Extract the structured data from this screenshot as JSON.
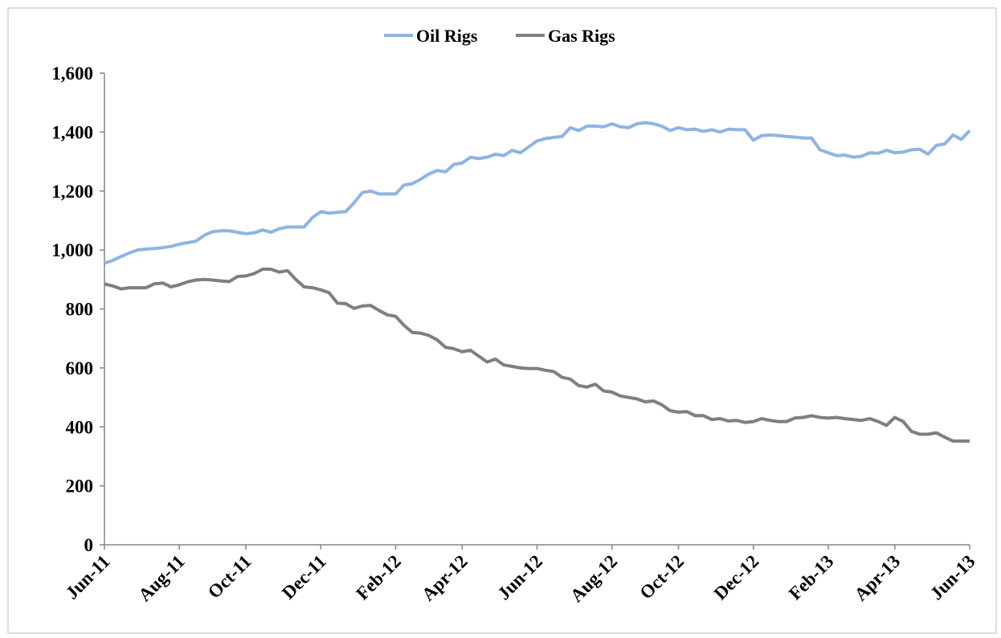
{
  "chart_data": {
    "type": "line",
    "categories": [
      "Jun-11",
      null,
      null,
      null,
      null,
      null,
      null,
      null,
      null,
      "Aug-11",
      null,
      null,
      null,
      null,
      null,
      null,
      null,
      "Oct-11",
      null,
      null,
      null,
      null,
      null,
      null,
      null,
      null,
      "Dec-11",
      null,
      null,
      null,
      null,
      null,
      null,
      null,
      null,
      "Feb-12",
      null,
      null,
      null,
      null,
      null,
      null,
      null,
      "Apr-12",
      null,
      null,
      null,
      null,
      null,
      null,
      null,
      null,
      "Jun-12",
      null,
      null,
      null,
      null,
      null,
      null,
      null,
      null,
      "Aug-12",
      null,
      null,
      null,
      null,
      null,
      null,
      null,
      "Oct-12",
      null,
      null,
      null,
      null,
      null,
      null,
      null,
      null,
      "Dec-12",
      null,
      null,
      null,
      null,
      null,
      null,
      null,
      null,
      "Feb-13",
      null,
      null,
      null,
      null,
      null,
      null,
      null,
      "Apr-13",
      null,
      null,
      null,
      null,
      null,
      null,
      null,
      null,
      "Jun-13"
    ],
    "series": [
      {
        "name": "Oil Rigs",
        "color": "#8eb4e3",
        "values": [
          955,
          965,
          978,
          990,
          1000,
          1003,
          1005,
          1008,
          1012,
          1020,
          1025,
          1030,
          1050,
          1062,
          1065,
          1065,
          1060,
          1055,
          1058,
          1068,
          1060,
          1072,
          1078,
          1078,
          1078,
          1110,
          1130,
          1125,
          1128,
          1130,
          1160,
          1195,
          1200,
          1190,
          1190,
          1190,
          1220,
          1225,
          1240,
          1258,
          1270,
          1265,
          1290,
          1295,
          1315,
          1310,
          1315,
          1325,
          1320,
          1338,
          1330,
          1350,
          1370,
          1378,
          1382,
          1385,
          1415,
          1405,
          1420,
          1420,
          1418,
          1428,
          1418,
          1415,
          1428,
          1432,
          1428,
          1420,
          1405,
          1415,
          1408,
          1410,
          1402,
          1408,
          1400,
          1410,
          1408,
          1408,
          1372,
          1388,
          1390,
          1388,
          1385,
          1383,
          1380,
          1380,
          1340,
          1330,
          1320,
          1322,
          1315,
          1318,
          1330,
          1328,
          1338,
          1330,
          1332,
          1340,
          1342,
          1325,
          1355,
          1360,
          1390,
          1375,
          1405
        ]
      },
      {
        "name": "Gas Rigs",
        "color": "#7f7f7f",
        "values": [
          885,
          878,
          868,
          872,
          872,
          872,
          885,
          888,
          875,
          882,
          892,
          898,
          900,
          898,
          895,
          893,
          910,
          912,
          920,
          935,
          935,
          925,
          930,
          900,
          875,
          872,
          865,
          855,
          820,
          818,
          802,
          810,
          812,
          795,
          780,
          775,
          745,
          720,
          718,
          710,
          695,
          670,
          665,
          655,
          660,
          640,
          620,
          630,
          610,
          605,
          600,
          598,
          598,
          592,
          588,
          568,
          562,
          540,
          535,
          545,
          522,
          518,
          505,
          500,
          495,
          485,
          488,
          475,
          455,
          450,
          452,
          438,
          438,
          425,
          428,
          420,
          422,
          415,
          418,
          428,
          422,
          418,
          418,
          430,
          432,
          438,
          432,
          430,
          432,
          428,
          425,
          422,
          428,
          418,
          405,
          432,
          418,
          385,
          375,
          375,
          380,
          365,
          352,
          352,
          352
        ]
      }
    ],
    "ylim": [
      0,
      1600
    ],
    "yticks": [
      0,
      200,
      400,
      600,
      800,
      {
        "value": 1000,
        "label": "1,000"
      },
      {
        "value": 1200,
        "label": "1,200"
      },
      {
        "value": 1400,
        "label": "1,400"
      },
      {
        "value": 1600,
        "label": "1,600"
      }
    ],
    "legend": "top"
  }
}
